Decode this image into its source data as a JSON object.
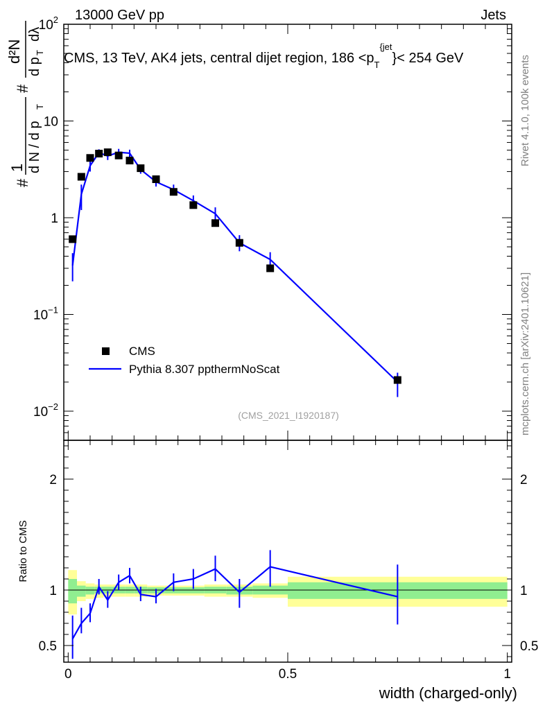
{
  "header": {
    "left": "13000 GeV pp",
    "right": "Jets",
    "title": "CMS, 13 TeV, AK4 jets, central dijet region, 186 <p",
    "title_sub": "T",
    "title_sup": "{jet",
    "title_end": "}< 254 GeV"
  },
  "side": {
    "rivet": "Rivet 4.1.0,  100k events",
    "mcplots": "mcplots.cern.ch [arXiv:2401.10621]"
  },
  "watermark": "(CMS_2021_I1920187)",
  "ylabel_top": "# 1/(d N / d pT) # d²N/(d pT dλ)",
  "legend": {
    "cms": "CMS",
    "mc": "Pythia 8.307 ppthermNoScat"
  },
  "colors": {
    "mc": "#0000ff",
    "band_inner": "#90ee90",
    "band_outer": "#ffff99"
  },
  "chart_data": [
    {
      "type": "scatter",
      "title": "CMS, 13 TeV, AK4 jets, central dijet region, 186 < pT^jet < 254 GeV",
      "xlabel": "width (charged-only)",
      "ylabel": "# 1/(dN/dpT) # d²N/(dpT dλ)",
      "xlim": [
        -0.01,
        1.01
      ],
      "ylim": [
        0.005,
        100
      ],
      "yscale": "log",
      "yticks": [
        0.01,
        0.1,
        1,
        10,
        100
      ],
      "series": [
        {
          "name": "CMS",
          "x": [
            0.01,
            0.03,
            0.05,
            0.07,
            0.09,
            0.115,
            0.14,
            0.165,
            0.2,
            0.24,
            0.285,
            0.335,
            0.39,
            0.46,
            0.75
          ],
          "values": [
            0.6,
            2.65,
            4.15,
            4.6,
            4.75,
            4.4,
            3.9,
            3.25,
            2.5,
            1.85,
            1.35,
            0.88,
            0.55,
            0.3,
            0.021
          ]
        },
        {
          "name": "Pythia 8.307 ppthermNoScat",
          "x": [
            0.01,
            0.03,
            0.05,
            0.07,
            0.09,
            0.115,
            0.14,
            0.165,
            0.2,
            0.24,
            0.285,
            0.335,
            0.39,
            0.46,
            0.75
          ],
          "values": [
            0.32,
            1.75,
            3.45,
            4.7,
            4.35,
            4.75,
            4.65,
            3.15,
            2.35,
            1.95,
            1.5,
            1.1,
            0.55,
            0.37,
            0.02
          ],
          "err_low": [
            0.22,
            1.2,
            3.0,
            4.3,
            3.95,
            4.35,
            4.25,
            2.85,
            2.1,
            1.7,
            1.3,
            0.95,
            0.45,
            0.3,
            0.014
          ],
          "err_high": [
            0.43,
            2.2,
            3.9,
            5.1,
            4.75,
            5.15,
            5.05,
            3.45,
            2.6,
            2.2,
            1.7,
            1.28,
            0.66,
            0.44,
            0.025
          ]
        }
      ]
    },
    {
      "type": "line",
      "title": "Ratio to CMS",
      "xlabel": "width (charged-only)",
      "ylabel": "Ratio to CMS",
      "xlim": [
        -0.01,
        1.01
      ],
      "ylim": [
        0.35,
        2.35
      ],
      "yticks": [
        0.5,
        1,
        2
      ],
      "xticks": [
        0,
        0.5,
        1
      ],
      "band_edges": [
        0,
        0.02,
        0.04,
        0.06,
        0.08,
        0.1,
        0.13,
        0.15,
        0.18,
        0.22,
        0.26,
        0.31,
        0.36,
        0.42,
        0.5,
        1.0
      ],
      "band_outer": [
        [
          0.78,
          1.18
        ],
        [
          0.9,
          1.08
        ],
        [
          0.92,
          1.06
        ],
        [
          0.93,
          1.05
        ],
        [
          0.94,
          1.05
        ],
        [
          0.94,
          1.05
        ],
        [
          0.94,
          1.05
        ],
        [
          0.94,
          1.05
        ],
        [
          0.95,
          1.04
        ],
        [
          0.95,
          1.04
        ],
        [
          0.95,
          1.04
        ],
        [
          0.94,
          1.05
        ],
        [
          0.94,
          1.05
        ],
        [
          0.93,
          1.06
        ],
        [
          0.85,
          1.12
        ]
      ],
      "band_inner": [
        [
          0.88,
          1.1
        ],
        [
          0.94,
          1.04
        ],
        [
          0.96,
          1.03
        ],
        [
          0.97,
          1.03
        ],
        [
          0.97,
          1.03
        ],
        [
          0.97,
          1.03
        ],
        [
          0.97,
          1.03
        ],
        [
          0.97,
          1.03
        ],
        [
          0.97,
          1.025
        ],
        [
          0.97,
          1.025
        ],
        [
          0.97,
          1.025
        ],
        [
          0.97,
          1.03
        ],
        [
          0.96,
          1.03
        ],
        [
          0.96,
          1.04
        ],
        [
          0.92,
          1.07
        ]
      ],
      "series": [
        {
          "name": "Pythia 8.307 ppthermNoScat / CMS",
          "x": [
            0.01,
            0.03,
            0.05,
            0.07,
            0.09,
            0.115,
            0.14,
            0.165,
            0.2,
            0.24,
            0.285,
            0.335,
            0.39,
            0.46,
            0.75
          ],
          "values": [
            0.56,
            0.7,
            0.79,
            1.03,
            0.91,
            1.07,
            1.13,
            0.96,
            0.94,
            1.07,
            1.1,
            1.19,
            0.98,
            1.21,
            0.94
          ],
          "err_low": [
            0.38,
            0.61,
            0.71,
            0.96,
            0.84,
            1.0,
            1.06,
            0.9,
            0.88,
            0.99,
            1.01,
            1.08,
            0.84,
            1.03,
            0.69
          ],
          "err_high": [
            0.77,
            0.84,
            0.88,
            1.1,
            0.99,
            1.14,
            1.2,
            1.03,
            1.01,
            1.15,
            1.19,
            1.31,
            1.1,
            1.36,
            1.23
          ]
        }
      ]
    }
  ]
}
